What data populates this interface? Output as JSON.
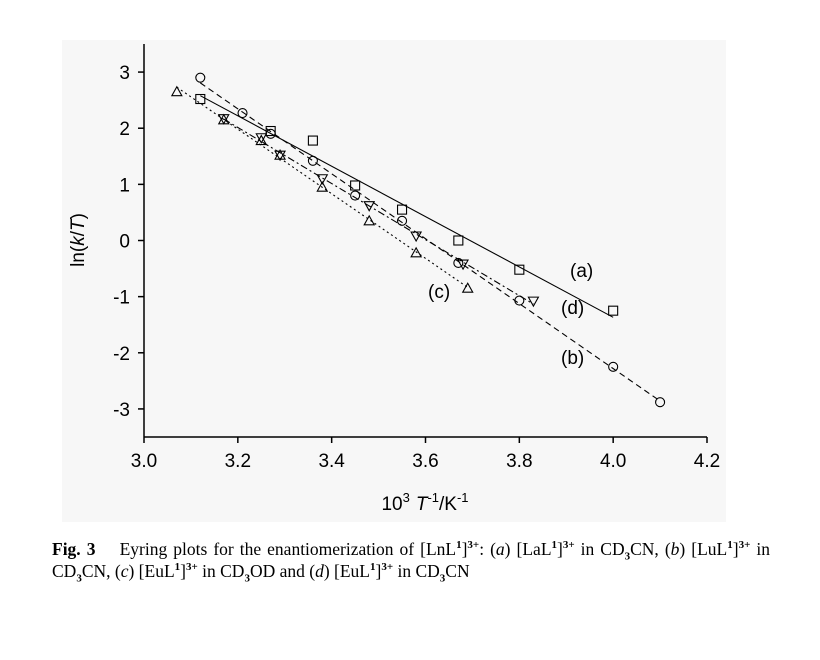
{
  "chart_data": {
    "type": "scatter",
    "xlabel": [
      "10",
      "3",
      "T",
      "-1",
      "/K",
      "-1"
    ],
    "ylabel": [
      "ln(",
      "k",
      "/",
      "T",
      ")"
    ],
    "xlim": [
      3.0,
      4.2
    ],
    "xticks": [
      {
        "value": 3.0,
        "label": "3.0"
      },
      3.2,
      3.4,
      3.6,
      3.8,
      {
        "value": 4.0,
        "label": "4.0"
      },
      4.2
    ],
    "ylim": [
      -3.5,
      3.5
    ],
    "yticks": [
      -3,
      -2,
      -1,
      0,
      1,
      2,
      3
    ],
    "series": [
      {
        "name": "(a)",
        "marker": "square",
        "linestyle": "solid",
        "color": "#000000",
        "x": [
          3.12,
          3.27,
          3.36,
          3.45,
          3.55,
          3.67,
          3.8,
          4.0
        ],
        "values": [
          2.52,
          1.95,
          1.78,
          0.98,
          0.55,
          0.0,
          -0.52,
          -1.25
        ]
      },
      {
        "name": "(b)",
        "marker": "circle",
        "linestyle": "dashed",
        "color": "#000000",
        "x": [
          3.12,
          3.21,
          3.27,
          3.36,
          3.45,
          3.55,
          3.67,
          3.8,
          4.0,
          4.1
        ],
        "values": [
          2.9,
          2.27,
          1.9,
          1.42,
          0.8,
          0.35,
          -0.4,
          -1.07,
          -2.25,
          -2.88
        ]
      },
      {
        "name": "(c)",
        "marker": "triangle-up",
        "linestyle": "dotted",
        "color": "#000000",
        "x": [
          3.07,
          3.17,
          3.25,
          3.29,
          3.38,
          3.48,
          3.58,
          3.69
        ],
        "values": [
          2.65,
          2.15,
          1.78,
          1.52,
          0.95,
          0.35,
          -0.22,
          -0.85
        ]
      },
      {
        "name": "(d)",
        "marker": "triangle-down",
        "linestyle": "dashdot",
        "color": "#000000",
        "x": [
          3.17,
          3.25,
          3.29,
          3.38,
          3.48,
          3.58,
          3.68,
          3.83
        ],
        "values": [
          2.17,
          1.83,
          1.52,
          1.1,
          0.62,
          0.08,
          -0.42,
          -1.08
        ]
      }
    ]
  },
  "caption": [
    "Fig. 3",
    "Eyring plots for the enantiomerization of [LnL",
    "1",
    "]",
    "3+",
    ": (",
    "a",
    ") [LaL",
    "1",
    "]",
    "3+",
    " in CD",
    "3",
    "CN, (",
    "b",
    ") [LuL",
    "1",
    "]",
    "3+",
    " in CD",
    "3",
    "CN, (",
    "c",
    ") [EuL",
    "1",
    "]",
    "3+",
    " in CD",
    "3",
    "OD and (",
    "d",
    ") [EuL",
    "1",
    "]",
    "3+",
    " in CD",
    "3",
    "CN"
  ]
}
